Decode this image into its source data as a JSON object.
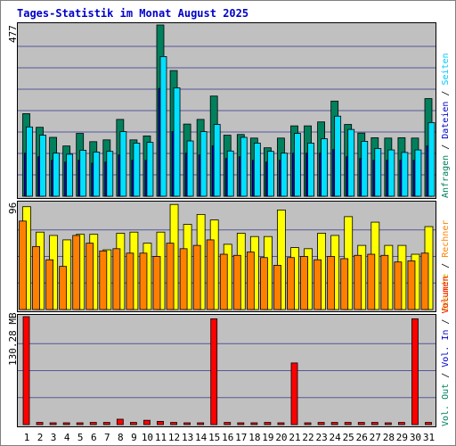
{
  "title": "Tages-Statistik im Monat August 2025",
  "labels": {
    "top_max": "477",
    "mid_max": "96",
    "bot_max": "130.28 MB"
  },
  "right_legend_top": [
    {
      "text": "Anfragen",
      "color": "#00805c"
    },
    {
      "text": " / ",
      "color": "#000000"
    },
    {
      "text": "Dateien",
      "color": "#0000c8"
    },
    {
      "text": " / ",
      "color": "#000000"
    },
    {
      "text": "Seiten",
      "color": "#00c8ff"
    }
  ],
  "right_legend_mid": [
    {
      "text": "Besuche",
      "color": "#d4c000"
    },
    {
      "text": " / ",
      "color": "#000000"
    },
    {
      "text": "Rechner",
      "color": "#ff8000"
    }
  ],
  "right_legend_bot": [
    {
      "text": "Vol. Out",
      "color": "#00805c"
    },
    {
      "text": " / ",
      "color": "#000000"
    },
    {
      "text": "Vol. In",
      "color": "#0000c8"
    },
    {
      "text": " / ",
      "color": "#000000"
    },
    {
      "text": "Volumen",
      "color": "#ff0000"
    }
  ],
  "colors": {
    "panel": "#c0c0c0",
    "hits": "#00805c",
    "files": "#0000c8",
    "pages": "#00e0ff",
    "visits": "#ffff00",
    "sites": "#ff8000",
    "volume": "#ff0000",
    "day_weekday": "#000000",
    "day_weekend": "#00805c"
  },
  "chart_data": {
    "type": "bar",
    "title": "Tages-Statistik im Monat August 2025",
    "days": [
      "1",
      "2",
      "3",
      "4",
      "5",
      "6",
      "7",
      "8",
      "9",
      "10",
      "11",
      "12",
      "13",
      "14",
      "15",
      "16",
      "17",
      "18",
      "19",
      "20",
      "21",
      "22",
      "23",
      "24",
      "25",
      "26",
      "27",
      "28",
      "29",
      "30",
      "31"
    ],
    "weekend_days": [
      "2",
      "3",
      "9",
      "10",
      "16",
      "17",
      "23",
      "24",
      "30",
      "31"
    ],
    "series": [
      {
        "name": "Anfragen",
        "panel": "top",
        "values": [
          230,
          192,
          164,
          140,
          175,
          152,
          157,
          214,
          157,
          168,
          477,
          350,
          201,
          214,
          279,
          170,
          172,
          162,
          135,
          162,
          196,
          196,
          207,
          265,
          200,
          176,
          163,
          162,
          163,
          162,
          272
        ]
      },
      {
        "name": "Dateien",
        "panel": "top",
        "values": [
          120,
          110,
          100,
          95,
          100,
          92,
          95,
          115,
          100,
          100,
          300,
          180,
          120,
          115,
          140,
          105,
          110,
          100,
          95,
          100,
          120,
          120,
          120,
          130,
          110,
          105,
          100,
          100,
          100,
          100,
          140
        ]
      },
      {
        "name": "Seiten",
        "panel": "top",
        "values": [
          193,
          170,
          120,
          117,
          128,
          123,
          125,
          180,
          148,
          150,
          389,
          302,
          154,
          180,
          200,
          126,
          164,
          148,
          125,
          120,
          175,
          148,
          160,
          223,
          186,
          153,
          133,
          129,
          122,
          129,
          205
        ]
      },
      {
        "name": "Besuche",
        "panel": "mid",
        "values": [
          93,
          70,
          67,
          63,
          68,
          68,
          54,
          69,
          70,
          60,
          70,
          95,
          77,
          86,
          81,
          59,
          69,
          66,
          66,
          90,
          56,
          55,
          69,
          67,
          84,
          58,
          79,
          58,
          58,
          50,
          75
        ]
      },
      {
        "name": "Rechner",
        "panel": "mid",
        "values": [
          80,
          57,
          45,
          39,
          67,
          60,
          53,
          55,
          51,
          51,
          48,
          60,
          55,
          58,
          63,
          50,
          49,
          52,
          47,
          40,
          47,
          48,
          45,
          48,
          46,
          49,
          50,
          49,
          43,
          44,
          51
        ]
      },
      {
        "name": "Volumen",
        "panel": "bot",
        "unit": "MB",
        "values": [
          130.28,
          2.6,
          1.3,
          1.3,
          1.3,
          2.6,
          2.6,
          6.5,
          2.6,
          5.2,
          3.9,
          2.6,
          1.3,
          1.3,
          127.7,
          2.6,
          1.3,
          1.3,
          2.6,
          1.3,
          74.4,
          1.3,
          2.6,
          2.6,
          2.6,
          2.6,
          2.6,
          1.3,
          2.6,
          127.7,
          2.6
        ]
      }
    ],
    "ylim_top": [
      0,
      477
    ],
    "ylim_mid": [
      0,
      96
    ],
    "ylim_bot": [
      0,
      130.28
    ]
  }
}
